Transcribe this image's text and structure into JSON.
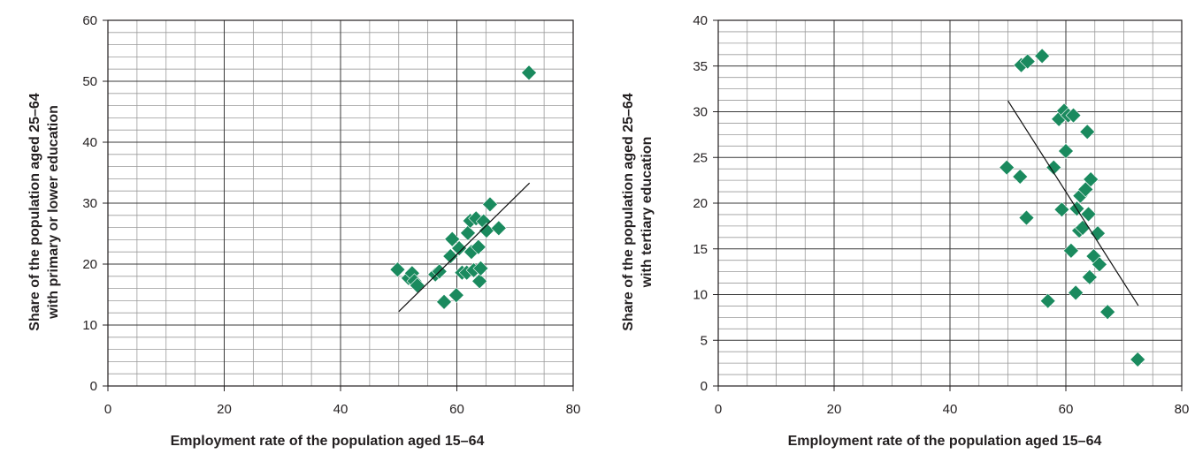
{
  "chart_data": [
    {
      "type": "scatter",
      "title": "",
      "xlabel": "Employment rate of the population aged 15–64",
      "ylabel": [
        "Share of the population aged 25–64",
        "with primary or lower education"
      ],
      "xlim": [
        0,
        80
      ],
      "ylim": [
        0,
        60
      ],
      "xticks": [
        "0",
        "20",
        "40",
        "60",
        "80"
      ],
      "yticks": [
        "0",
        "10",
        "20",
        "30",
        "40",
        "50",
        "60"
      ],
      "grid": true,
      "marker": "diamond",
      "marker_color": "#1a8a5e",
      "trendline": {
        "x": [
          50,
          72.5
        ],
        "y": [
          12.2,
          33.3
        ]
      },
      "points": [
        {
          "x": 49.8,
          "y": 19.1
        },
        {
          "x": 51.7,
          "y": 17.7
        },
        {
          "x": 52.3,
          "y": 18.5
        },
        {
          "x": 52.7,
          "y": 17.2
        },
        {
          "x": 53.2,
          "y": 16.5
        },
        {
          "x": 56.3,
          "y": 18.3
        },
        {
          "x": 57.0,
          "y": 18.8
        },
        {
          "x": 57.8,
          "y": 13.8
        },
        {
          "x": 58.9,
          "y": 21.3
        },
        {
          "x": 59.2,
          "y": 24.1
        },
        {
          "x": 59.9,
          "y": 14.9
        },
        {
          "x": 60.4,
          "y": 22.6
        },
        {
          "x": 60.9,
          "y": 18.6
        },
        {
          "x": 61.7,
          "y": 18.6
        },
        {
          "x": 61.9,
          "y": 25.1
        },
        {
          "x": 62.3,
          "y": 27.1
        },
        {
          "x": 62.5,
          "y": 22.0
        },
        {
          "x": 62.9,
          "y": 19.0
        },
        {
          "x": 63.3,
          "y": 27.5
        },
        {
          "x": 63.7,
          "y": 22.8
        },
        {
          "x": 63.9,
          "y": 17.2
        },
        {
          "x": 64.1,
          "y": 19.3
        },
        {
          "x": 64.6,
          "y": 27.0
        },
        {
          "x": 65.1,
          "y": 25.5
        },
        {
          "x": 65.7,
          "y": 29.8
        },
        {
          "x": 67.2,
          "y": 25.9
        },
        {
          "x": 72.4,
          "y": 51.4
        }
      ]
    },
    {
      "type": "scatter",
      "title": "",
      "xlabel": "Employment rate of the population aged 15–64",
      "ylabel": [
        "Share of the population aged 25–64",
        "with tertiary education"
      ],
      "xlim": [
        0,
        80
      ],
      "ylim": [
        0,
        40
      ],
      "xticks": [
        "0",
        "20",
        "40",
        "60",
        "80"
      ],
      "yticks": [
        "0",
        "5",
        "10",
        "15",
        "20",
        "25",
        "30",
        "35",
        "40"
      ],
      "grid": true,
      "marker": "diamond",
      "marker_color": "#1a8a5e",
      "trendline": {
        "x": [
          50,
          72.5
        ],
        "y": [
          31.2,
          8.8
        ]
      },
      "points": [
        {
          "x": 49.8,
          "y": 23.9
        },
        {
          "x": 52.1,
          "y": 22.9
        },
        {
          "x": 52.3,
          "y": 35.1
        },
        {
          "x": 53.2,
          "y": 18.4
        },
        {
          "x": 53.4,
          "y": 35.5
        },
        {
          "x": 55.9,
          "y": 36.1
        },
        {
          "x": 56.9,
          "y": 9.3
        },
        {
          "x": 57.9,
          "y": 23.9
        },
        {
          "x": 58.8,
          "y": 29.2
        },
        {
          "x": 59.3,
          "y": 19.3
        },
        {
          "x": 59.7,
          "y": 30.1
        },
        {
          "x": 60.0,
          "y": 25.7
        },
        {
          "x": 60.4,
          "y": 29.6
        },
        {
          "x": 60.9,
          "y": 14.8
        },
        {
          "x": 61.3,
          "y": 29.6
        },
        {
          "x": 61.7,
          "y": 10.2
        },
        {
          "x": 61.9,
          "y": 19.4
        },
        {
          "x": 62.3,
          "y": 17.0
        },
        {
          "x": 62.5,
          "y": 20.8
        },
        {
          "x": 62.9,
          "y": 17.3
        },
        {
          "x": 63.4,
          "y": 21.5
        },
        {
          "x": 63.7,
          "y": 27.8
        },
        {
          "x": 63.9,
          "y": 18.8
        },
        {
          "x": 64.1,
          "y": 11.9
        },
        {
          "x": 64.3,
          "y": 22.6
        },
        {
          "x": 64.8,
          "y": 14.2
        },
        {
          "x": 65.5,
          "y": 16.7
        },
        {
          "x": 65.8,
          "y": 13.3
        },
        {
          "x": 67.2,
          "y": 8.1
        },
        {
          "x": 72.4,
          "y": 2.9
        }
      ]
    }
  ]
}
